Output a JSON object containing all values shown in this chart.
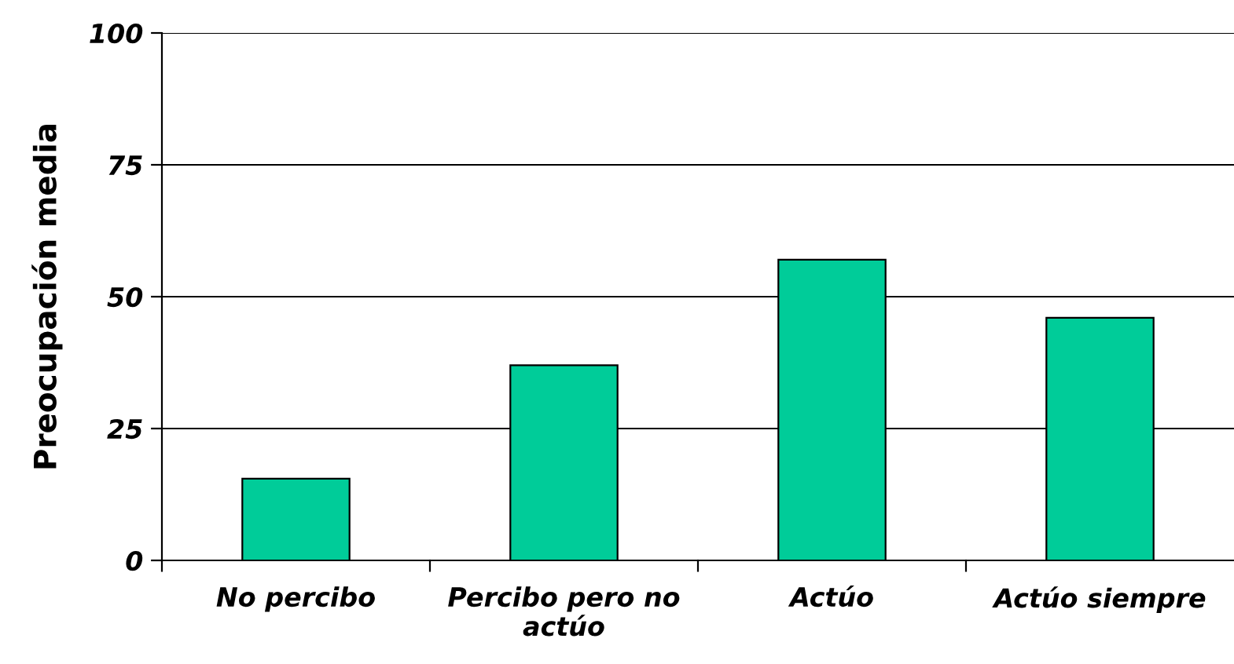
{
  "chart_data": {
    "type": "bar",
    "ylabel": "Preocupación media",
    "categories": [
      "No percibo",
      "Percibo pero no\nactúo",
      "Actúo",
      "Actúo siempre"
    ],
    "values": [
      15.5,
      37,
      57,
      46
    ],
    "color": "#00cc99",
    "ylim": [
      0,
      100
    ],
    "yticks": [
      0,
      25,
      50,
      75,
      100
    ],
    "grid": "y"
  }
}
